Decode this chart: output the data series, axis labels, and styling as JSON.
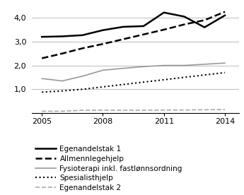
{
  "years": [
    2005,
    2006,
    2007,
    2008,
    2009,
    2010,
    2011,
    2012,
    2013,
    2014
  ],
  "egenandelstak1": [
    3.2,
    3.22,
    3.27,
    3.48,
    3.62,
    3.65,
    4.22,
    4.05,
    3.6,
    4.1
  ],
  "allmennlegehjelp": [
    2.3,
    2.5,
    2.72,
    2.9,
    3.1,
    3.3,
    3.5,
    3.72,
    3.9,
    4.25
  ],
  "fysioterapi": [
    1.45,
    1.35,
    1.55,
    1.8,
    1.88,
    1.95,
    2.0,
    2.0,
    2.05,
    2.1
  ],
  "spesialisthjelp": [
    0.88,
    0.93,
    1.0,
    1.1,
    1.2,
    1.3,
    1.4,
    1.5,
    1.6,
    1.7
  ],
  "egenandelstak2": [
    0.08,
    0.08,
    0.12,
    0.12,
    0.12,
    0.12,
    0.13,
    0.13,
    0.14,
    0.15
  ],
  "ylim": [
    0.0,
    4.5
  ],
  "yticks": [
    1.0,
    2.0,
    3.0,
    4.0
  ],
  "ytick_labels": [
    "1,0",
    "2,0",
    "3,0",
    "4,0"
  ],
  "xticks": [
    2005,
    2008,
    2011,
    2014
  ],
  "legend_labels": [
    "Egenandelstak 1",
    "Allmennlegehjelp",
    "Fysioterapi inkl. fastlønnsordning",
    "Spesialisthjelp",
    "Egenandelstak 2"
  ],
  "line_colors": [
    "#000000",
    "#000000",
    "#999999",
    "#000000",
    "#aaaaaa"
  ],
  "line_styles": [
    "-",
    "--",
    "-",
    ":",
    "--"
  ],
  "line_widths": [
    1.8,
    1.8,
    1.2,
    1.5,
    1.2
  ],
  "dash_patterns": [
    null,
    [
      6,
      3
    ],
    null,
    null,
    [
      4,
      4
    ]
  ],
  "grid_color": "#bbbbbb",
  "background_color": "#ffffff",
  "tick_fontsize": 8,
  "legend_fontsize": 7.5
}
